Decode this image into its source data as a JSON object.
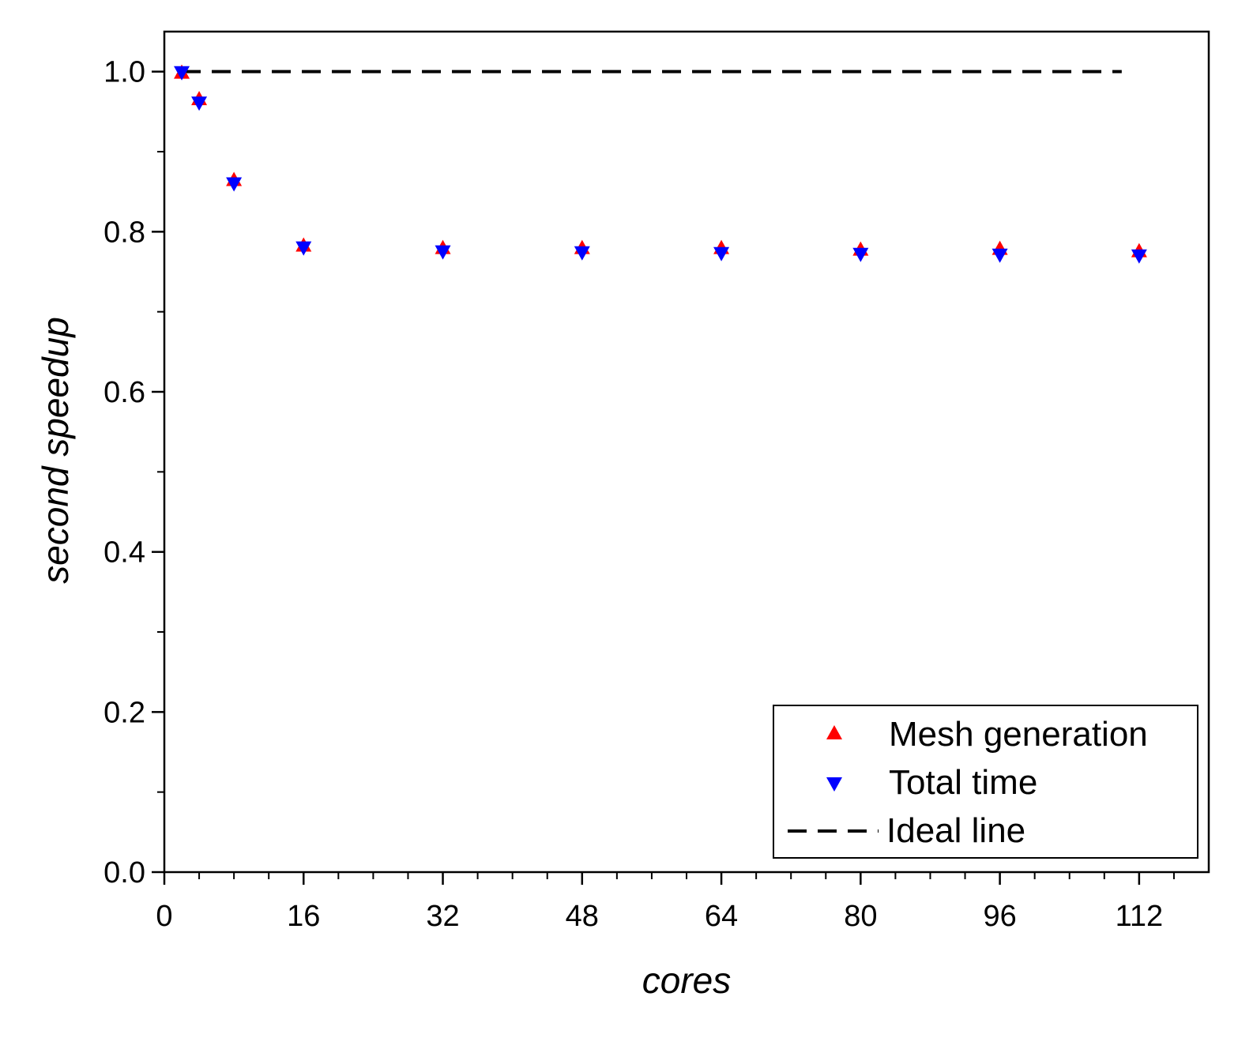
{
  "chart_data": {
    "type": "scatter",
    "xlabel": "cores",
    "ylabel": "second speedup",
    "xlim": [
      0,
      120
    ],
    "ylim": [
      0,
      1.05
    ],
    "xticks": [
      0,
      16,
      32,
      48,
      64,
      80,
      96,
      112
    ],
    "xtick_labels": [
      "0",
      "16",
      "32",
      "48",
      "64",
      "80",
      "96",
      "112"
    ],
    "yticks": [
      0.0,
      0.2,
      0.4,
      0.6,
      0.8,
      1.0
    ],
    "ytick_labels": [
      "0.0",
      "0.2",
      "0.4",
      "0.6",
      "0.8",
      "1.0"
    ],
    "grid": false,
    "legend_position": "bottom-right",
    "series": [
      {
        "name": "Mesh generation",
        "marker": "triangle-up",
        "color": "#ff0000",
        "x": [
          2,
          4,
          8,
          16,
          32,
          48,
          64,
          80,
          96,
          112
        ],
        "y": [
          1.0,
          0.967,
          0.866,
          0.784,
          0.781,
          0.781,
          0.781,
          0.779,
          0.78,
          0.777
        ]
      },
      {
        "name": "Total time",
        "marker": "triangle-down",
        "color": "#0000ff",
        "x": [
          2,
          4,
          8,
          16,
          32,
          48,
          64,
          80,
          96,
          112
        ],
        "y": [
          0.998,
          0.96,
          0.859,
          0.779,
          0.774,
          0.773,
          0.772,
          0.771,
          0.77,
          0.769
        ]
      },
      {
        "name": "Ideal line",
        "style": "dashed-line",
        "color": "#000000",
        "x": [
          2,
          110
        ],
        "y": [
          1.0,
          1.0
        ]
      }
    ]
  }
}
